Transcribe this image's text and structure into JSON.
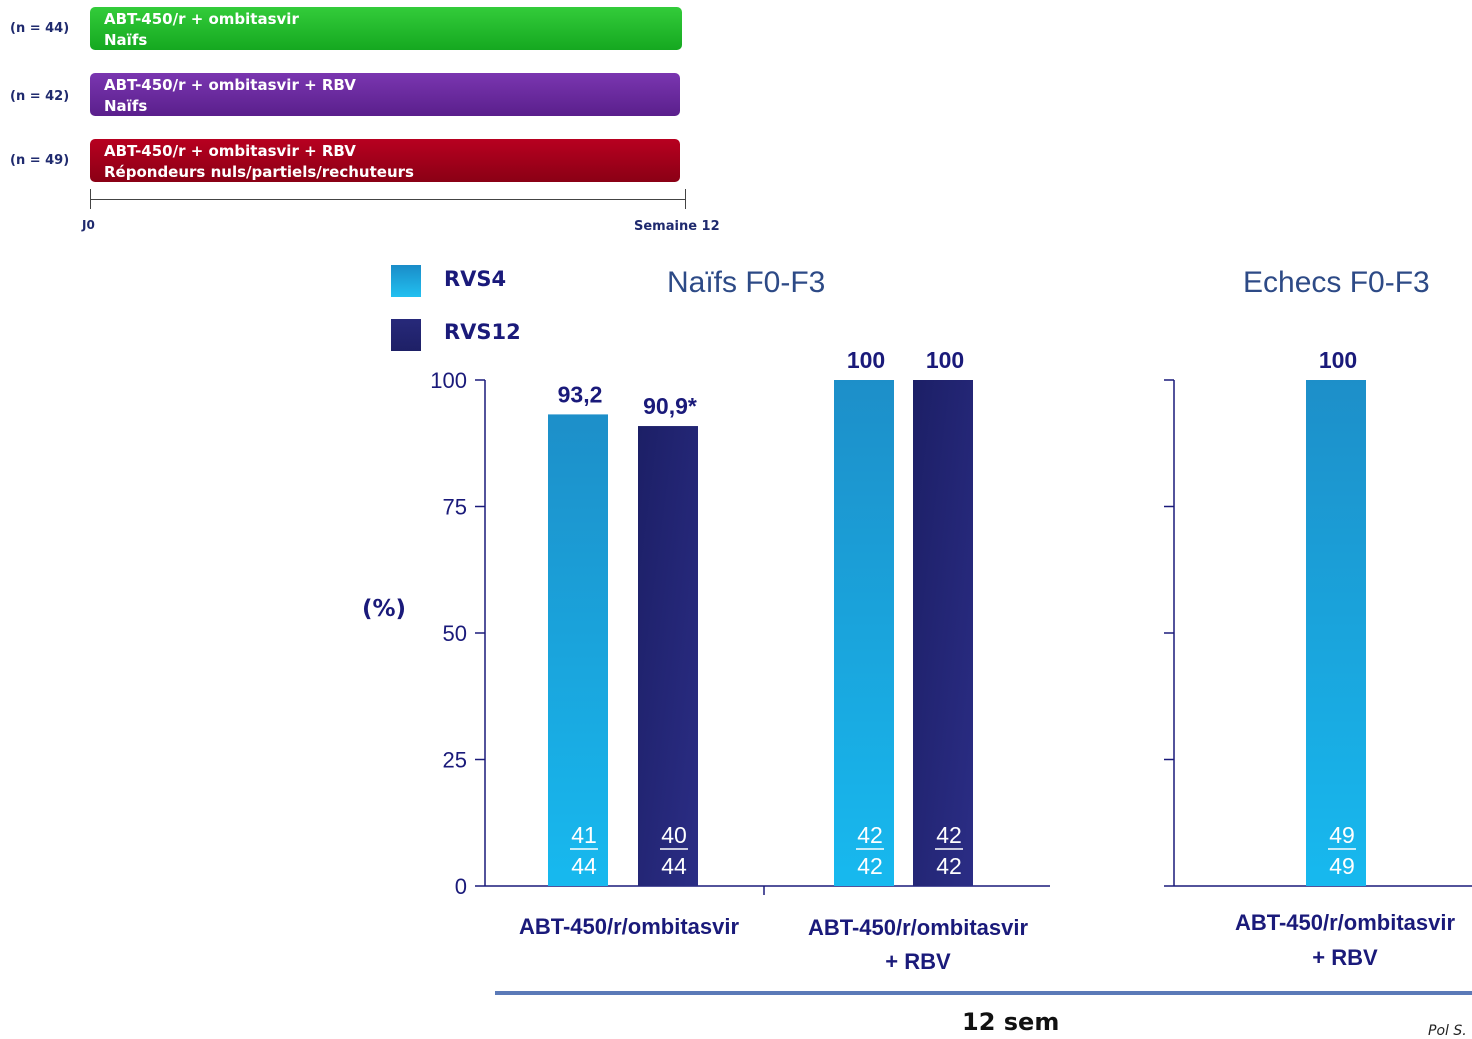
{
  "arms": [
    {
      "n": "(n = 44)",
      "line1": "ABT-450/r + ombitasvir",
      "line2": "Naïfs",
      "color": "#1fb82a"
    },
    {
      "n": "(n = 42)",
      "line1": "ABT-450/r + ombitasvir + RBV",
      "line2": "Naïfs",
      "color": "#6a2a9e"
    },
    {
      "n": "(n = 49)",
      "line1": "ABT-450/r + ombitasvir + RBV",
      "line2": "Répondeurs nuls/partiels/rechuteurs",
      "color": "#a0001a"
    }
  ],
  "timeline": {
    "start": "J0",
    "end": "Semaine 12"
  },
  "legend": [
    {
      "label": "RVS4",
      "color": "#1aa8e0"
    },
    {
      "label": "RVS12",
      "color": "#27297a"
    }
  ],
  "chart_data": {
    "type": "bar",
    "ylabel": "(%)",
    "ylim": [
      0,
      100
    ],
    "yticks": [
      0,
      25,
      50,
      75,
      100
    ],
    "panels": [
      {
        "title": "Naïfs F0-F3",
        "groups": [
          {
            "label": [
              "ABT-450/r/ombitasvir"
            ],
            "bars": [
              {
                "series": "RVS4",
                "value": 93.2,
                "label": "93,2",
                "num": "41",
                "den": "44"
              },
              {
                "series": "RVS12",
                "value": 90.9,
                "label": "90,9*",
                "num": "40",
                "den": "44"
              }
            ]
          },
          {
            "label": [
              "ABT-450/r/ombitasvir",
              "+ RBV"
            ],
            "bars": [
              {
                "series": "RVS4",
                "value": 100,
                "label": "100",
                "num": "42",
                "den": "42"
              },
              {
                "series": "RVS12",
                "value": 100,
                "label": "100",
                "num": "42",
                "den": "42"
              }
            ]
          }
        ]
      },
      {
        "title": "Echecs F0-F3",
        "groups": [
          {
            "label": [
              "ABT-450/r/ombitasvir",
              "+ RBV"
            ],
            "bars": [
              {
                "series": "RVS4",
                "value": 100,
                "label": "100",
                "num": "49",
                "den": "49"
              }
            ]
          }
        ]
      }
    ]
  },
  "footer": {
    "duration": "12 sem",
    "citation": "Pol S."
  }
}
